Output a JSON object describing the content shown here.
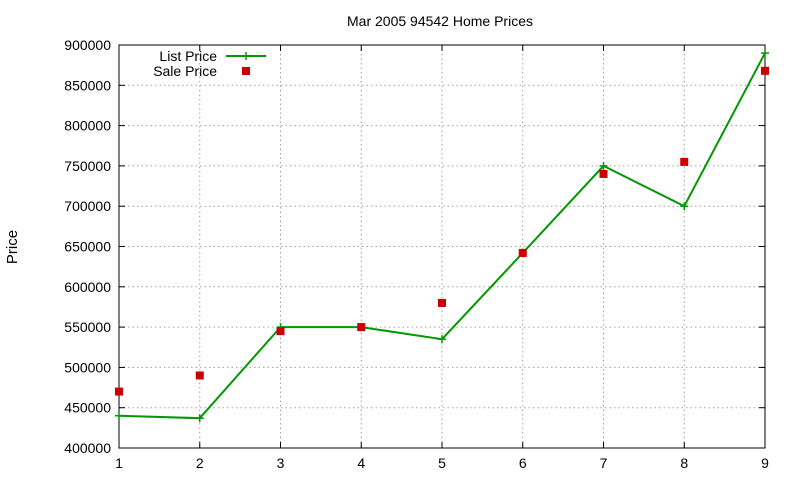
{
  "chart_data": {
    "type": "line",
    "title": "Mar 2005 94542 Home Prices",
    "xlabel": "",
    "ylabel": "Price",
    "x": [
      1,
      2,
      3,
      4,
      5,
      6,
      7,
      8,
      9
    ],
    "xlim": [
      1,
      9
    ],
    "ylim": [
      400000,
      900000
    ],
    "xticks": [
      "1",
      "2",
      "3",
      "4",
      "5",
      "6",
      "7",
      "8",
      "9"
    ],
    "yticks": [
      "400000",
      "450000",
      "500000",
      "550000",
      "600000",
      "650000",
      "700000",
      "750000",
      "800000",
      "850000",
      "900000"
    ],
    "grid": true,
    "legend_position": "top-left",
    "series": [
      {
        "name": "List Price",
        "style": "line-with-plus-markers",
        "color": "#009900",
        "values": [
          440000,
          437000,
          550000,
          550000,
          535000,
          642000,
          750000,
          700000,
          890000
        ]
      },
      {
        "name": "Sale Price",
        "style": "square-markers",
        "color": "#cc0000",
        "values": [
          470000,
          490000,
          545000,
          550000,
          580000,
          642000,
          740000,
          755000,
          868000
        ]
      }
    ]
  }
}
